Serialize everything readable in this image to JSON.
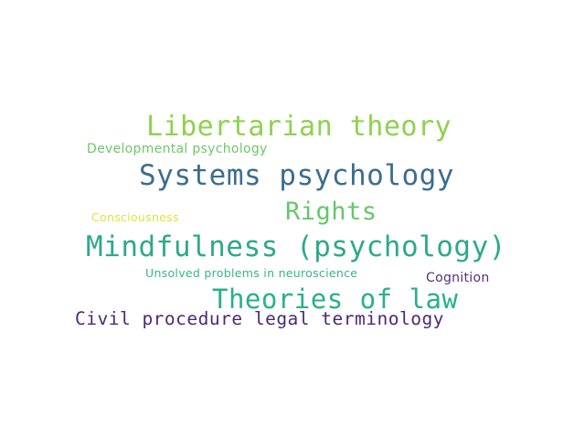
{
  "words": [
    {
      "key": "libertarian",
      "text": "Libertarian theory",
      "color": "#8fd14f"
    },
    {
      "key": "devpsych",
      "text": "Developmental psychology",
      "color": "#6cc867"
    },
    {
      "key": "systems",
      "text": "Systems psychology",
      "color": "#3b6d8f"
    },
    {
      "key": "rights",
      "text": "Rights",
      "color": "#66c76a"
    },
    {
      "key": "conscious",
      "text": "Consciousness",
      "color": "#e2e23a"
    },
    {
      "key": "mindful",
      "text": "Mindfulness (psychology)",
      "color": "#2ea98a"
    },
    {
      "key": "unsolved",
      "text": "Unsolved problems in neuroscience",
      "color": "#36b68a"
    },
    {
      "key": "cognition",
      "text": "Cognition",
      "color": "#55307a"
    },
    {
      "key": "theories",
      "text": "Theories of law",
      "color": "#29b089"
    },
    {
      "key": "civil",
      "text": "Civil procedure legal terminology",
      "color": "#4b2a70"
    }
  ]
}
